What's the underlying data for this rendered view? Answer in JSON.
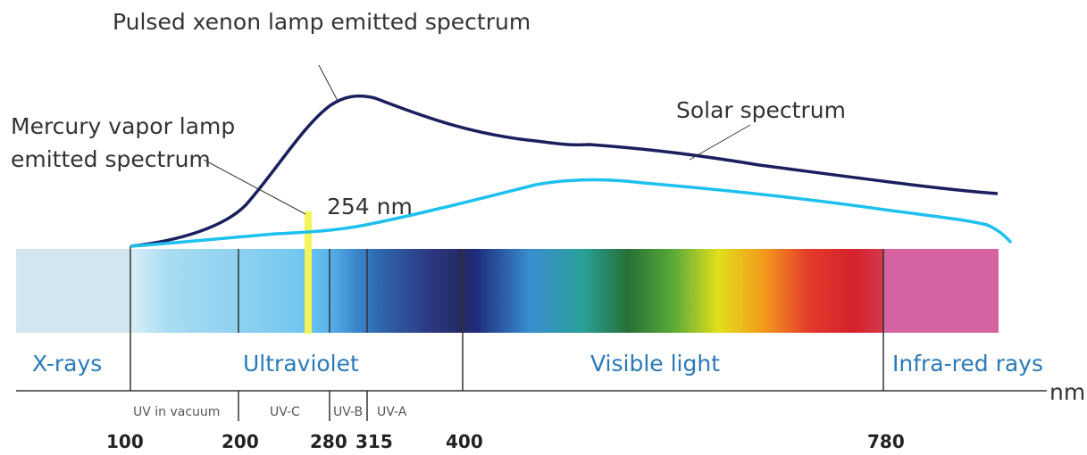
{
  "labels": {
    "xenon": "Pulsed xenon lamp emitted spectrum",
    "mercury_line1": "Mercury vapor lamp",
    "mercury_line2": "emitted spectrum",
    "solar": "Solar spectrum",
    "peak": "254 nm"
  },
  "regions": {
    "xrays": "X-rays",
    "uv": "Ultraviolet",
    "visible": "Visible light",
    "ir": "Infra-red rays"
  },
  "subregions": {
    "vacuum": "UV in vacuum",
    "uvc": "UV-C",
    "uvb": "UV-B",
    "uva": "UV-A"
  },
  "axis": {
    "unit": "nm",
    "ticks": [
      "100",
      "200",
      "280",
      "315",
      "400",
      "780"
    ]
  },
  "colors": {
    "xenon_curve": "#1a1f5e",
    "solar_curve": "#1ec0ee",
    "mercury_bar": "#f4f55a",
    "region_text": "#2a7ab8"
  }
}
